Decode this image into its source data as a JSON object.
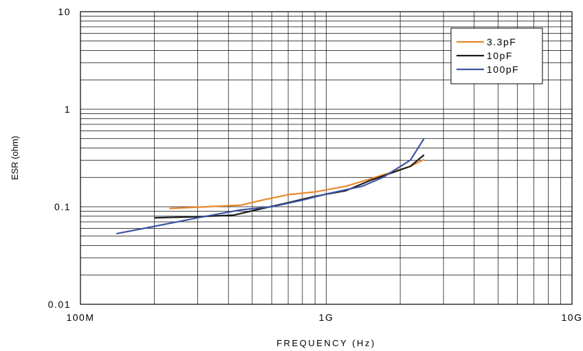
{
  "chart_data": {
    "type": "line",
    "title": "",
    "xlabel": "FREQUENCY (Hz)",
    "ylabel": "ESR (ohm)",
    "x_scale": "log",
    "y_scale": "log",
    "x_unit": "Hz",
    "y_unit": "ohm",
    "xlim": [
      100000000,
      10000000000
    ],
    "ylim": [
      0.01,
      10
    ],
    "x_ticks": [
      {
        "value": 100000000,
        "label": "100M"
      },
      {
        "value": 1000000000,
        "label": "1G"
      },
      {
        "value": 10000000000,
        "label": "10G"
      }
    ],
    "y_ticks": [
      {
        "value": 0.01,
        "label": "0.01"
      },
      {
        "value": 0.1,
        "label": "0.1"
      },
      {
        "value": 1,
        "label": "1"
      },
      {
        "value": 10,
        "label": "10"
      }
    ],
    "grid": true,
    "legend_position": "top-right",
    "series": [
      {
        "name": "3.3pF",
        "color": "#e8882a",
        "x": [
          230000000,
          300000000,
          450000000,
          550000000,
          700000000,
          900000000,
          1200000000,
          1500000000,
          2200000000,
          2500000000
        ],
        "y": [
          0.096,
          0.099,
          0.104,
          0.117,
          0.133,
          0.142,
          0.162,
          0.192,
          0.26,
          0.305
        ]
      },
      {
        "name": "10pF",
        "color": "#1a1a1a",
        "x": [
          200000000,
          300000000,
          420000000,
          550000000,
          700000000,
          900000000,
          1200000000,
          1500000000,
          2200000000,
          2500000000
        ],
        "y": [
          0.077,
          0.079,
          0.082,
          0.096,
          0.11,
          0.128,
          0.146,
          0.185,
          0.26,
          0.34
        ]
      },
      {
        "name": "100pF",
        "color": "#3a55a0",
        "x": [
          140000000,
          200000000,
          300000000,
          450000000,
          600000000,
          800000000,
          1000000000,
          1400000000,
          1700000000,
          2200000000,
          2500000000
        ],
        "y": [
          0.053,
          0.063,
          0.077,
          0.093,
          0.1,
          0.117,
          0.135,
          0.162,
          0.2,
          0.3,
          0.5
        ]
      }
    ]
  }
}
